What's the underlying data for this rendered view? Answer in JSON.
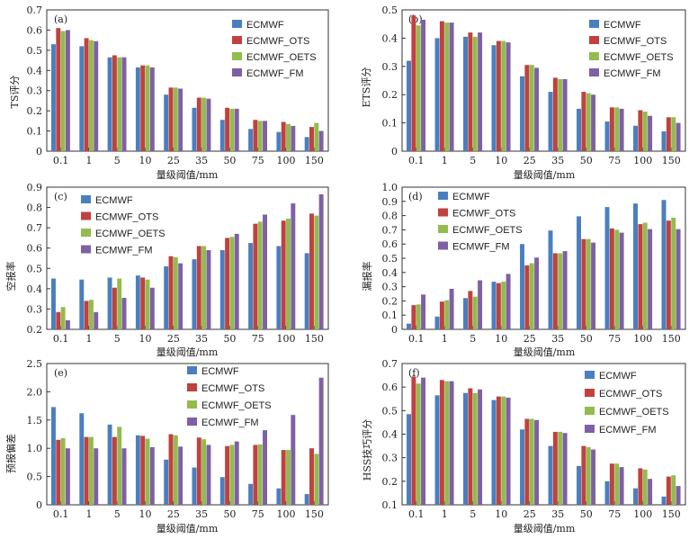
{
  "figure": {
    "series_names": [
      "ECMWF",
      "ECMWF_OTS",
      "ECMWF_OETS",
      "ECMWF_FM"
    ],
    "series_colors": [
      "#4a7fbf",
      "#c0413f",
      "#93bb4e",
      "#7e60a4"
    ]
  },
  "chart_data": [
    {
      "type": "bar",
      "panel_tag": "(a)",
      "xlabel": "量级阈值/mm",
      "ylabel": "TS评分",
      "categories": [
        "0.1",
        "1",
        "5",
        "10",
        "25",
        "35",
        "50",
        "75",
        "100",
        "150"
      ],
      "ylim": [
        0,
        0.7
      ],
      "yticks": [
        "0",
        "0.1",
        "0.2",
        "0.3",
        "0.4",
        "0.5",
        "0.6",
        "0.7"
      ],
      "legend_position": "top-right",
      "series": [
        {
          "name": "ECMWF",
          "values": [
            0.53,
            0.52,
            0.465,
            0.415,
            0.28,
            0.215,
            0.155,
            0.11,
            0.095,
            0.07
          ]
        },
        {
          "name": "ECMWF_OTS",
          "values": [
            0.61,
            0.56,
            0.475,
            0.425,
            0.315,
            0.265,
            0.215,
            0.155,
            0.145,
            0.12
          ]
        },
        {
          "name": "ECMWF_OETS",
          "values": [
            0.595,
            0.55,
            0.465,
            0.425,
            0.315,
            0.265,
            0.21,
            0.15,
            0.135,
            0.14
          ]
        },
        {
          "name": "ECMWF_FM",
          "values": [
            0.6,
            0.545,
            0.465,
            0.415,
            0.31,
            0.26,
            0.21,
            0.15,
            0.125,
            0.1
          ]
        }
      ]
    },
    {
      "type": "bar",
      "panel_tag": "(b)",
      "xlabel": "量级阈值/mm",
      "ylabel": "ETS评分",
      "categories": [
        "0.1",
        "1",
        "5",
        "10",
        "25",
        "35",
        "50",
        "75",
        "100",
        "150"
      ],
      "ylim": [
        0,
        0.5
      ],
      "yticks": [
        "0",
        "0.1",
        "0.2",
        "0.3",
        "0.4",
        "0.5"
      ],
      "legend_position": "top-right",
      "series": [
        {
          "name": "ECMWF",
          "values": [
            0.32,
            0.4,
            0.405,
            0.375,
            0.265,
            0.21,
            0.15,
            0.105,
            0.09,
            0.07
          ]
        },
        {
          "name": "ECMWF_OTS",
          "values": [
            0.48,
            0.46,
            0.42,
            0.39,
            0.305,
            0.26,
            0.21,
            0.155,
            0.145,
            0.12
          ]
        },
        {
          "name": "ECMWF_OETS",
          "values": [
            0.445,
            0.455,
            0.405,
            0.39,
            0.305,
            0.255,
            0.205,
            0.155,
            0.14,
            0.12
          ]
        },
        {
          "name": "ECMWF_FM",
          "values": [
            0.465,
            0.455,
            0.42,
            0.385,
            0.295,
            0.255,
            0.2,
            0.15,
            0.125,
            0.1
          ]
        }
      ]
    },
    {
      "type": "bar",
      "panel_tag": "(c)",
      "xlabel": "量级阈值/mm",
      "ylabel": "空报率",
      "categories": [
        "0.1",
        "1",
        "5",
        "10",
        "25",
        "35",
        "50",
        "75",
        "100",
        "150"
      ],
      "ylim": [
        0.2,
        0.9
      ],
      "yticks": [
        "0.2",
        "0.3",
        "0.4",
        "0.5",
        "0.6",
        "0.7",
        "0.8",
        "0.9"
      ],
      "legend_position": "top-left",
      "series": [
        {
          "name": "ECMWF",
          "values": [
            0.45,
            0.445,
            0.455,
            0.465,
            0.51,
            0.545,
            0.59,
            0.625,
            0.61,
            0.575
          ]
        },
        {
          "name": "ECMWF_OTS",
          "values": [
            0.285,
            0.34,
            0.405,
            0.455,
            0.56,
            0.61,
            0.65,
            0.72,
            0.735,
            0.77
          ]
        },
        {
          "name": "ECMWF_OETS",
          "values": [
            0.31,
            0.345,
            0.45,
            0.445,
            0.555,
            0.61,
            0.655,
            0.73,
            0.745,
            0.76
          ]
        },
        {
          "name": "ECMWF_FM",
          "values": [
            0.245,
            0.285,
            0.355,
            0.405,
            0.525,
            0.59,
            0.67,
            0.765,
            0.82,
            0.865
          ]
        }
      ]
    },
    {
      "type": "bar",
      "panel_tag": "(d)",
      "xlabel": "量级阈值/mm",
      "ylabel": "漏报率",
      "categories": [
        "0.1",
        "1",
        "5",
        "10",
        "25",
        "35",
        "50",
        "75",
        "100",
        "150"
      ],
      "ylim": [
        0,
        1.0
      ],
      "yticks": [
        "0",
        "0.1",
        "0.2",
        "0.3",
        "0.4",
        "0.5",
        "0.6",
        "0.7",
        "0.8",
        "0.9",
        "1.0"
      ],
      "legend_position": "top-left",
      "series": [
        {
          "name": "ECMWF",
          "values": [
            0.04,
            0.09,
            0.22,
            0.335,
            0.6,
            0.695,
            0.795,
            0.86,
            0.885,
            0.91
          ]
        },
        {
          "name": "ECMWF_OTS",
          "values": [
            0.17,
            0.195,
            0.27,
            0.325,
            0.45,
            0.535,
            0.635,
            0.71,
            0.74,
            0.765
          ]
        },
        {
          "name": "ECMWF_OETS",
          "values": [
            0.175,
            0.205,
            0.23,
            0.335,
            0.465,
            0.535,
            0.635,
            0.7,
            0.75,
            0.785
          ]
        },
        {
          "name": "ECMWF_FM",
          "values": [
            0.245,
            0.285,
            0.345,
            0.39,
            0.505,
            0.55,
            0.61,
            0.68,
            0.705,
            0.705
          ]
        }
      ]
    },
    {
      "type": "bar",
      "panel_tag": "(e)",
      "xlabel": "量级阈值/mm",
      "ylabel": "预报偏差",
      "categories": [
        "0.1",
        "1",
        "5",
        "10",
        "25",
        "35",
        "50",
        "75",
        "100",
        "150"
      ],
      "ylim": [
        0,
        2.5
      ],
      "yticks": [
        "0",
        "0.5",
        "1.0",
        "1.5",
        "2.0",
        "2.5"
      ],
      "legend_position": "top-right",
      "series": [
        {
          "name": "ECMWF",
          "values": [
            1.73,
            1.62,
            1.42,
            1.23,
            0.8,
            0.66,
            0.49,
            0.37,
            0.29,
            0.19
          ]
        },
        {
          "name": "ECMWF_OTS",
          "values": [
            1.15,
            1.2,
            1.2,
            1.22,
            1.25,
            1.19,
            1.04,
            1.06,
            0.97,
            1.0
          ]
        },
        {
          "name": "ECMWF_OETS",
          "values": [
            1.18,
            1.2,
            1.38,
            1.17,
            1.23,
            1.16,
            1.06,
            1.07,
            0.97,
            0.9
          ]
        },
        {
          "name": "ECMWF_FM",
          "values": [
            1.0,
            1.0,
            1.0,
            1.02,
            1.03,
            1.06,
            1.12,
            1.32,
            1.59,
            2.25
          ]
        }
      ]
    },
    {
      "type": "bar",
      "panel_tag": "(f)",
      "xlabel": "量级阈值/mm",
      "ylabel": "HSS技巧评分",
      "categories": [
        "0.1",
        "1",
        "5",
        "10",
        "25",
        "35",
        "50",
        "75",
        "100",
        "150"
      ],
      "ylim": [
        0.1,
        0.7
      ],
      "yticks": [
        "0.1",
        "0.2",
        "0.3",
        "0.4",
        "0.5",
        "0.6",
        "0.7"
      ],
      "legend_position": "top-right",
      "series": [
        {
          "name": "ECMWF",
          "values": [
            0.485,
            0.565,
            0.575,
            0.545,
            0.42,
            0.35,
            0.265,
            0.2,
            0.17,
            0.135
          ]
        },
        {
          "name": "ECMWF_OTS",
          "values": [
            0.645,
            0.63,
            0.595,
            0.56,
            0.465,
            0.41,
            0.35,
            0.275,
            0.255,
            0.22
          ]
        },
        {
          "name": "ECMWF_OETS",
          "values": [
            0.615,
            0.625,
            0.575,
            0.56,
            0.465,
            0.41,
            0.345,
            0.275,
            0.25,
            0.225
          ]
        },
        {
          "name": "ECMWF_FM",
          "values": [
            0.64,
            0.625,
            0.59,
            0.555,
            0.46,
            0.405,
            0.335,
            0.26,
            0.21,
            0.18
          ]
        }
      ]
    }
  ]
}
